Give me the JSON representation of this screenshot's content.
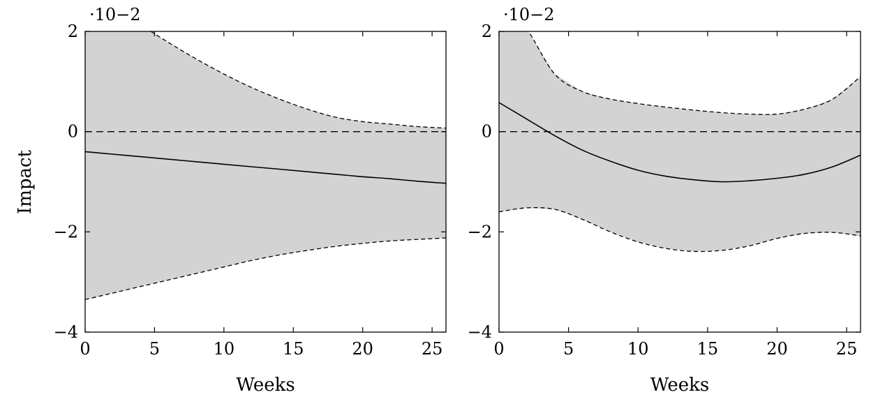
{
  "figure": {
    "ylabel": "Impact"
  },
  "chart_data": [
    {
      "type": "line",
      "xlabel": "Weeks",
      "ylabel": "Impact",
      "xlim": [
        0,
        26
      ],
      "ylim": [
        -4,
        2
      ],
      "scale_label": "·10−2",
      "xticks": [
        0,
        5,
        10,
        15,
        20,
        25
      ],
      "yticks": [
        -4,
        -2,
        0,
        2
      ],
      "reference_line": 0,
      "x": [
        0,
        2,
        4,
        6,
        8,
        10,
        12,
        14,
        16,
        18,
        20,
        22,
        24,
        26
      ],
      "mean": [
        -0.4,
        -0.45,
        -0.5,
        -0.55,
        -0.6,
        -0.65,
        -0.7,
        -0.75,
        -0.8,
        -0.85,
        -0.9,
        -0.94,
        -0.99,
        -1.03
      ],
      "upper": [
        2.8,
        2.47,
        2.13,
        1.78,
        1.45,
        1.15,
        0.88,
        0.65,
        0.45,
        0.29,
        0.2,
        0.15,
        0.1,
        0.07
      ],
      "lower": [
        -3.35,
        -3.22,
        -3.09,
        -2.96,
        -2.83,
        -2.7,
        -2.57,
        -2.46,
        -2.37,
        -2.29,
        -2.23,
        -2.18,
        -2.15,
        -2.12
      ],
      "colors": {
        "band": "#d3d3d3",
        "line": "#000000"
      }
    },
    {
      "type": "line",
      "xlabel": "Weeks",
      "ylabel": "",
      "xlim": [
        0,
        26
      ],
      "ylim": [
        -4,
        2
      ],
      "scale_label": "·10−2",
      "xticks": [
        0,
        5,
        10,
        15,
        20,
        25
      ],
      "yticks": [
        -4,
        -2,
        0,
        2
      ],
      "reference_line": 0,
      "x": [
        0,
        2,
        4,
        6,
        8,
        10,
        12,
        14,
        16,
        18,
        20,
        22,
        24,
        26
      ],
      "mean": [
        0.58,
        0.25,
        -0.08,
        -0.37,
        -0.59,
        -0.77,
        -0.89,
        -0.96,
        -1.0,
        -0.98,
        -0.93,
        -0.85,
        -0.7,
        -0.47
      ],
      "upper": [
        2.7,
        2.05,
        1.15,
        0.8,
        0.65,
        0.56,
        0.49,
        0.43,
        0.38,
        0.35,
        0.35,
        0.45,
        0.65,
        1.1
      ],
      "lower": [
        -1.6,
        -1.52,
        -1.55,
        -1.75,
        -2.0,
        -2.2,
        -2.33,
        -2.39,
        -2.37,
        -2.28,
        -2.13,
        -2.03,
        -2.01,
        -2.08
      ],
      "colors": {
        "band": "#d3d3d3",
        "line": "#000000"
      }
    }
  ]
}
